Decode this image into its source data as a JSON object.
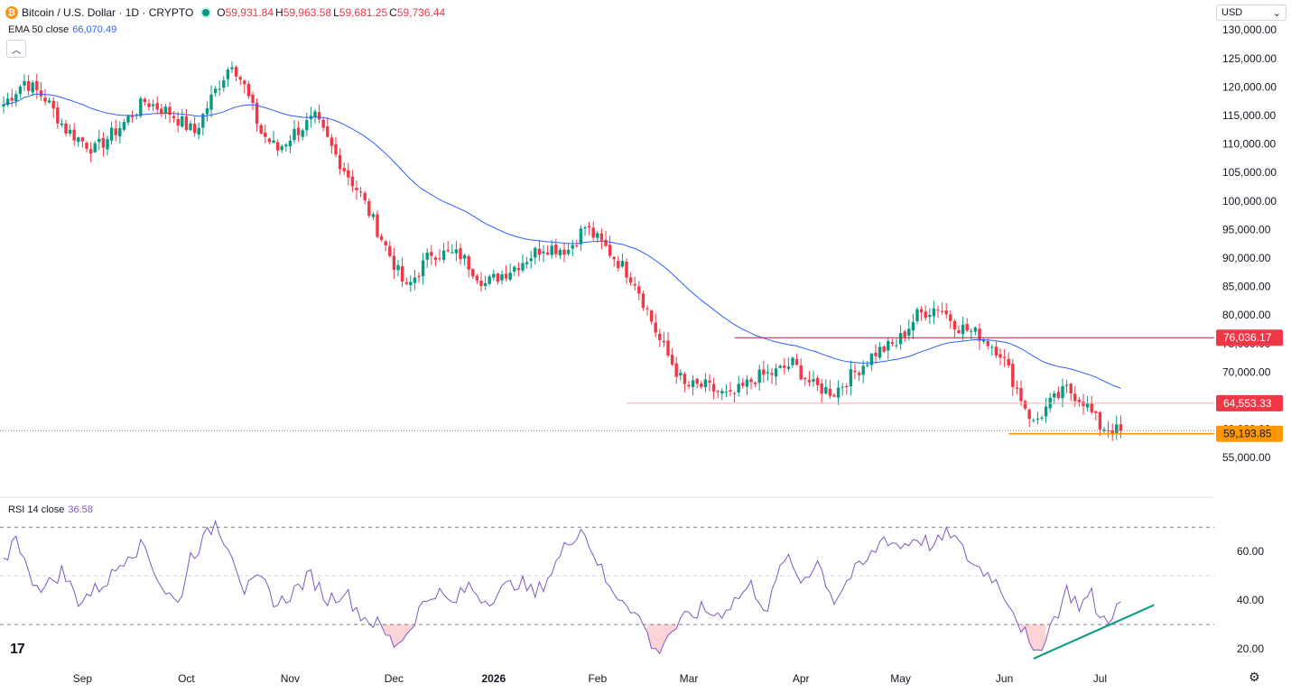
{
  "header": {
    "symbol_icon": "bitcoin-icon",
    "title": "Bitcoin / U.S. Dollar · 1D · CRYPTO",
    "ohlc": [
      {
        "key": "O",
        "value": "59,931.84"
      },
      {
        "key": "H",
        "value": "59,963.58"
      },
      {
        "key": "L",
        "value": "59,681.25"
      },
      {
        "key": "C",
        "value": "59,736.44"
      }
    ]
  },
  "indicators": {
    "ema": {
      "label": "EMA 50 close",
      "value": "66,070.49"
    },
    "rsi": {
      "label": "RSI 14 close",
      "value": "36.58"
    }
  },
  "currency": {
    "label": "USD"
  },
  "colors": {
    "up": "#089981",
    "down": "#f23645",
    "ema": "#2962ff",
    "rsi": "#7e57c2",
    "support": "#ff9800",
    "trend": "#089981",
    "resistance": "#b22833"
  },
  "chart_data": [
    {
      "type": "candlestick",
      "series": [
        {
          "name": "Bitcoin / U.S. Dollar",
          "kind": "candles"
        },
        {
          "name": "EMA 50 close",
          "kind": "line"
        }
      ],
      "x_ticks": [
        "Sep",
        "Oct",
        "Nov",
        "Dec",
        "2026",
        "Feb",
        "Mar",
        "Apr",
        "May",
        "Jun",
        "Jul"
      ],
      "y_ticks": [
        55000,
        60000,
        65000,
        70000,
        75000,
        80000,
        85000,
        90000,
        95000,
        100000,
        105000,
        110000,
        115000,
        120000,
        125000,
        130000
      ],
      "y_tick_labels": [
        "55,000.00",
        "60,000.00",
        "65,000.00",
        "70,000.00",
        "75,000.00",
        "80,000.00",
        "85,000.00",
        "90,000.00",
        "95,000.00",
        "100,000.00",
        "105,000.00",
        "110,000.00",
        "115,000.00",
        "120,000.00",
        "125,000.00",
        "130,000.00"
      ],
      "ylim": [
        52500,
        130500
      ],
      "close_anchors": [
        [
          0,
          117000
        ],
        [
          5,
          121000
        ],
        [
          10,
          118000
        ],
        [
          15,
          112500
        ],
        [
          22,
          109000
        ],
        [
          28,
          113000
        ],
        [
          34,
          117500
        ],
        [
          40,
          115500
        ],
        [
          46,
          112000
        ],
        [
          50,
          118000
        ],
        [
          55,
          124500
        ],
        [
          58,
          120000
        ],
        [
          62,
          112000
        ],
        [
          66,
          109000
        ],
        [
          70,
          112000
        ],
        [
          75,
          114500
        ],
        [
          80,
          108000
        ],
        [
          86,
          101000
        ],
        [
          92,
          92000
        ],
        [
          97,
          84500
        ],
        [
          103,
          91000
        ],
        [
          110,
          90500
        ],
        [
          116,
          85500
        ],
        [
          122,
          88000
        ],
        [
          130,
          92000
        ],
        [
          136,
          91500
        ],
        [
          140,
          95500
        ],
        [
          146,
          91000
        ],
        [
          152,
          86000
        ],
        [
          158,
          75500
        ],
        [
          164,
          67500
        ],
        [
          169,
          67500
        ],
        [
          175,
          65500
        ],
        [
          181,
          69000
        ],
        [
          186,
          70000
        ],
        [
          190,
          71500
        ],
        [
          195,
          67500
        ],
        [
          200,
          66500
        ],
        [
          205,
          70000
        ],
        [
          210,
          73500
        ],
        [
          215,
          75000
        ],
        [
          220,
          80000
        ],
        [
          225,
          81500
        ],
        [
          230,
          78000
        ],
        [
          235,
          76500
        ],
        [
          240,
          73500
        ],
        [
          244,
          67000
        ],
        [
          248,
          61000
        ],
        [
          252,
          64500
        ],
        [
          256,
          67000
        ],
        [
          260,
          65000
        ],
        [
          264,
          60500
        ],
        [
          268,
          59736
        ]
      ],
      "levels": [
        {
          "value": 76036.17,
          "label": "76,036.17"
        },
        {
          "value": 64553.33,
          "label": "64,553.33"
        },
        {
          "value": 59193.85,
          "label": "59,193.85"
        }
      ],
      "last_price": 59736.44
    },
    {
      "type": "line",
      "series": [
        {
          "name": "RSI 14 close"
        }
      ],
      "y_ticks": [
        20,
        40,
        60
      ],
      "y_tick_labels": [
        "20.00",
        "40.00",
        "60.00"
      ],
      "ylim": [
        13,
        76
      ],
      "bands": [
        30,
        50,
        70
      ],
      "value_anchors": [
        [
          0,
          54
        ],
        [
          3,
          68
        ],
        [
          6,
          50
        ],
        [
          10,
          45
        ],
        [
          14,
          52
        ],
        [
          18,
          40
        ],
        [
          22,
          44
        ],
        [
          26,
          50
        ],
        [
          30,
          60
        ],
        [
          34,
          62
        ],
        [
          38,
          46
        ],
        [
          42,
          38
        ],
        [
          45,
          58
        ],
        [
          48,
          64
        ],
        [
          51,
          72
        ],
        [
          55,
          60
        ],
        [
          58,
          44
        ],
        [
          62,
          48
        ],
        [
          66,
          38
        ],
        [
          70,
          44
        ],
        [
          74,
          50
        ],
        [
          78,
          40
        ],
        [
          82,
          44
        ],
        [
          86,
          34
        ],
        [
          90,
          30
        ],
        [
          94,
          22
        ],
        [
          97,
          26
        ],
        [
          100,
          36
        ],
        [
          104,
          44
        ],
        [
          108,
          38
        ],
        [
          112,
          46
        ],
        [
          116,
          40
        ],
        [
          120,
          44
        ],
        [
          124,
          48
        ],
        [
          128,
          42
        ],
        [
          132,
          52
        ],
        [
          136,
          64
        ],
        [
          139,
          70
        ],
        [
          142,
          60
        ],
        [
          146,
          44
        ],
        [
          150,
          40
        ],
        [
          154,
          30
        ],
        [
          157,
          18
        ],
        [
          160,
          26
        ],
        [
          164,
          32
        ],
        [
          168,
          36
        ],
        [
          172,
          34
        ],
        [
          176,
          40
        ],
        [
          180,
          46
        ],
        [
          184,
          36
        ],
        [
          188,
          58
        ],
        [
          192,
          48
        ],
        [
          196,
          56
        ],
        [
          200,
          40
        ],
        [
          204,
          50
        ],
        [
          208,
          56
        ],
        [
          212,
          66
        ],
        [
          216,
          62
        ],
        [
          220,
          66
        ],
        [
          224,
          62
        ],
        [
          228,
          68
        ],
        [
          231,
          60
        ],
        [
          234,
          54
        ],
        [
          238,
          50
        ],
        [
          242,
          40
        ],
        [
          246,
          26
        ],
        [
          248,
          16
        ],
        [
          251,
          26
        ],
        [
          254,
          36
        ],
        [
          256,
          44
        ],
        [
          259,
          38
        ],
        [
          262,
          42
        ],
        [
          264,
          32
        ],
        [
          266,
          33
        ],
        [
          268,
          37
        ]
      ],
      "trendline": [
        [
          248,
          16
        ],
        [
          277,
          38
        ]
      ]
    }
  ]
}
